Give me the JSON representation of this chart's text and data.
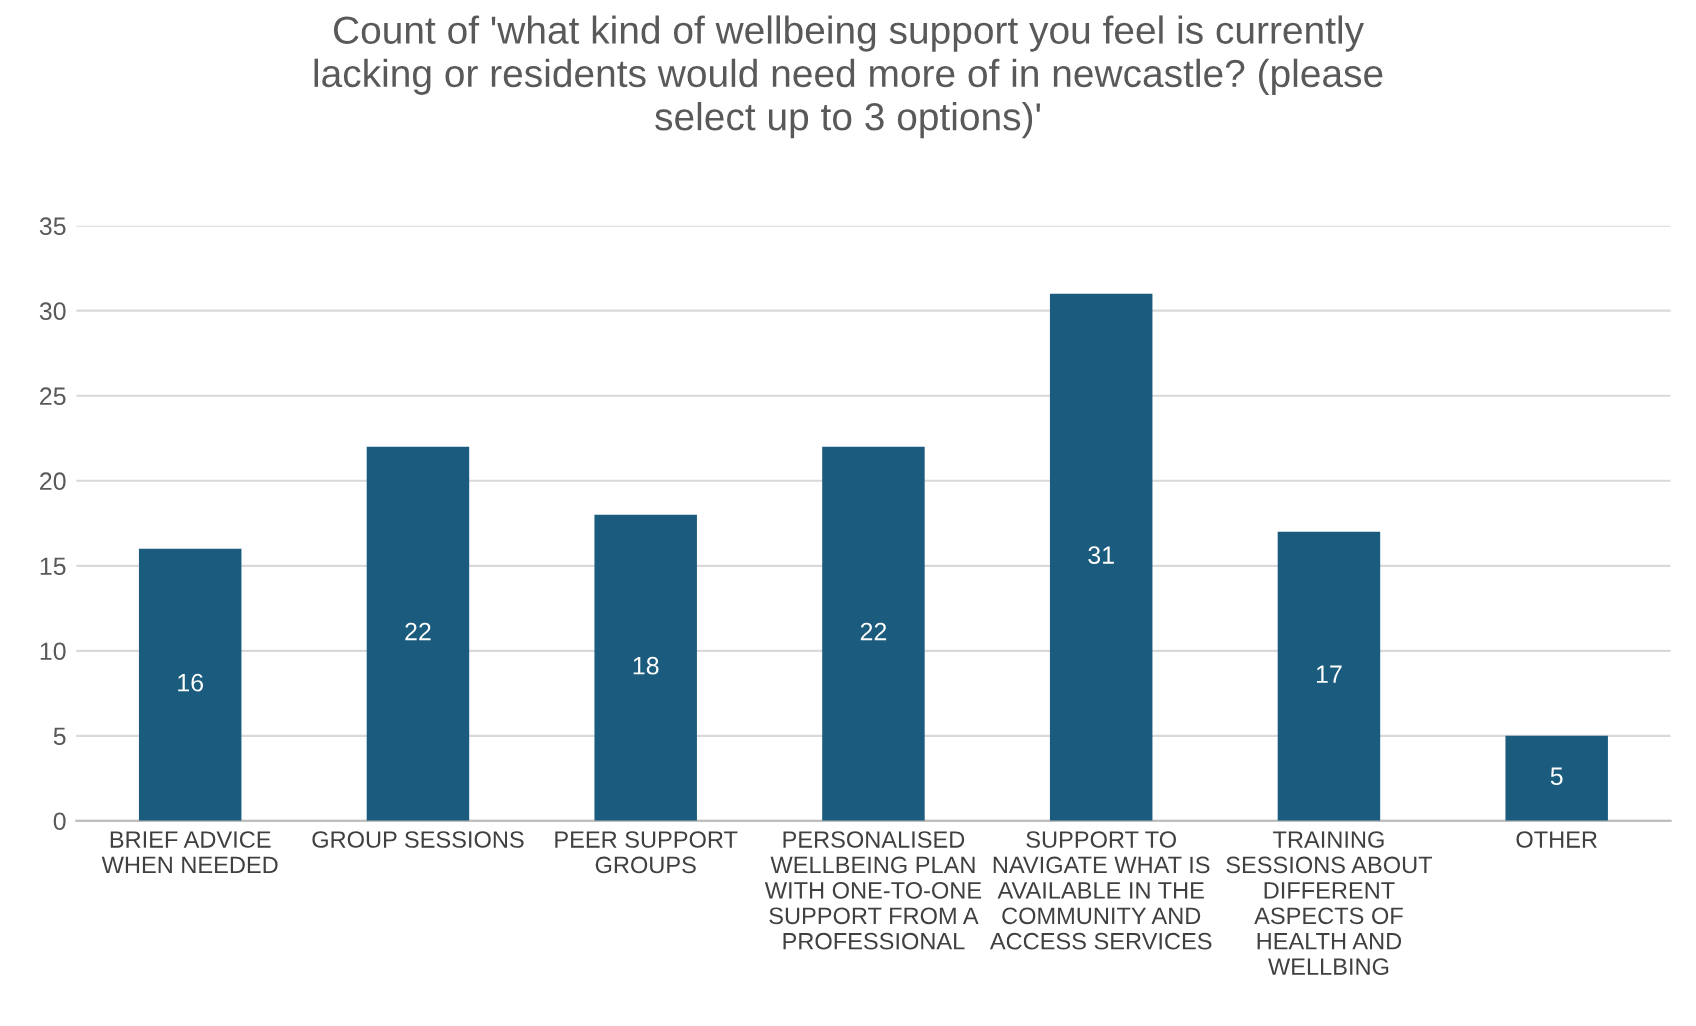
{
  "chart_data": {
    "type": "bar",
    "title": "Count of 'what kind of wellbeing support you feel is currently\nlacking or residents would need more of in newcastle? (please\nselect up to 3 options)'",
    "categories": [
      "BRIEF ADVICE\nWHEN NEEDED",
      "GROUP SESSIONS",
      "PEER SUPPORT\nGROUPS",
      "PERSONALISED\nWELLBEING PLAN\nWITH ONE-TO-ONE\nSUPPORT FROM A\nPROFESSIONAL",
      "SUPPORT TO\nNAVIGATE WHAT IS\nAVAILABLE IN THE\nCOMMUNITY AND\nACCESS SERVICES",
      "TRAINING\nSESSIONS ABOUT\nDIFFERENT\nASPECTS OF\nHEALTH AND\nWELLBING",
      "OTHER"
    ],
    "values": [
      16,
      22,
      18,
      22,
      31,
      17,
      5
    ],
    "color": "#1b5c7e",
    "ylim": [
      0,
      35
    ],
    "yticks": [
      0,
      5,
      10,
      15,
      20,
      25,
      30,
      35
    ],
    "grid": "y",
    "data_labels": true
  }
}
